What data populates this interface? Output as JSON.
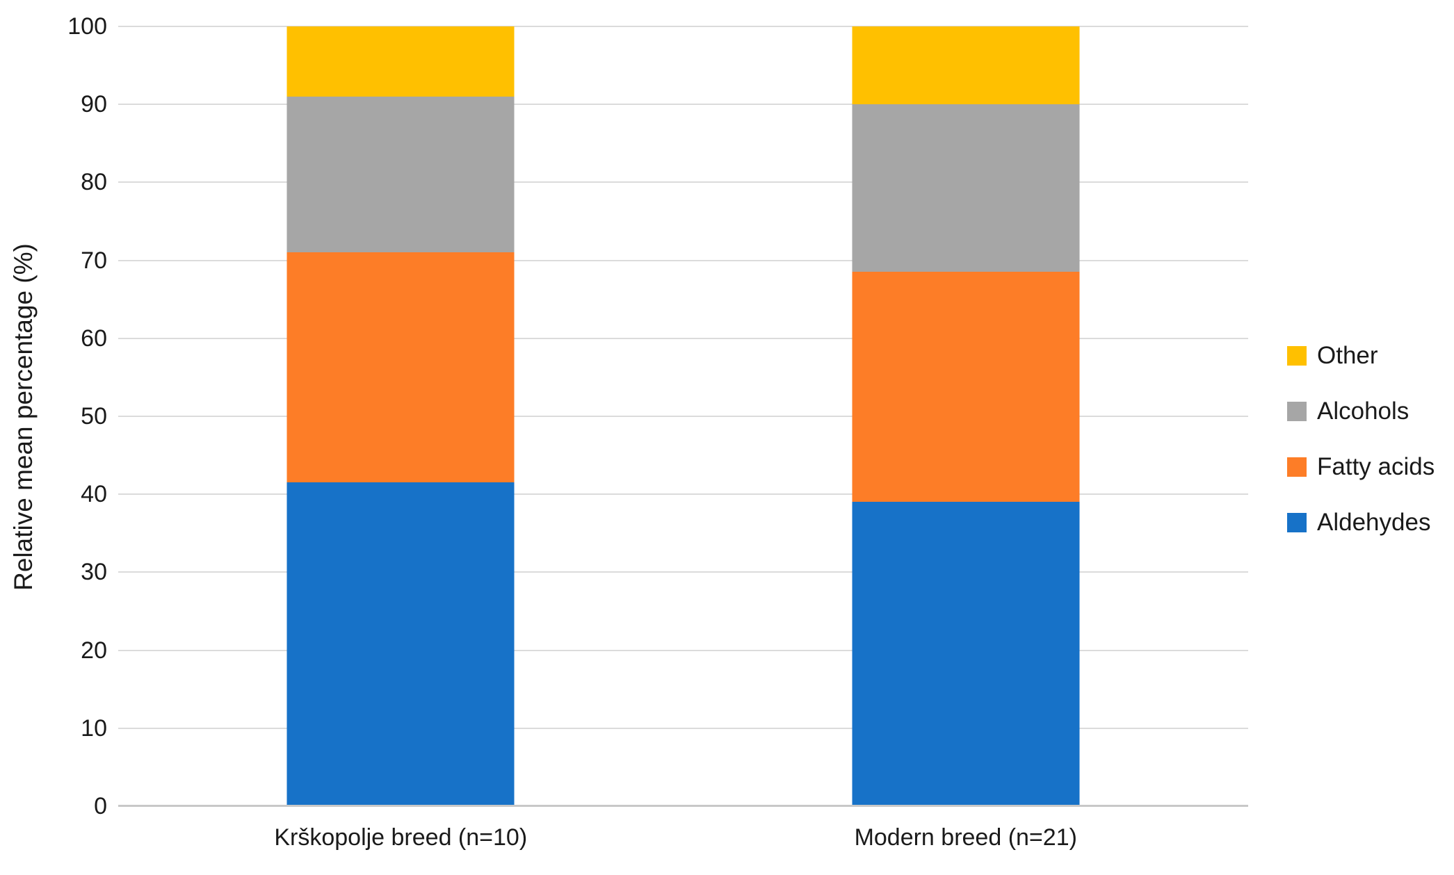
{
  "chart_data": {
    "type": "bar",
    "stacked": true,
    "title": "",
    "xlabel": "",
    "ylabel": "Relative mean percentage (%)",
    "ylim": [
      0,
      100
    ],
    "ytick_step": 10,
    "grid": true,
    "legend_position": "right",
    "categories": [
      "Krškopolje breed (n=10)",
      "Modern breed (n=21)"
    ],
    "series": [
      {
        "name": "Aldehydes",
        "color": "#1772c8",
        "values": [
          41.5,
          39.0
        ]
      },
      {
        "name": "Fatty acids",
        "color": "#fd7d27",
        "values": [
          29.5,
          29.5
        ]
      },
      {
        "name": "Alcohols",
        "color": "#a6a6a6",
        "values": [
          20.0,
          21.5
        ]
      },
      {
        "name": "Other",
        "color": "#ffc000",
        "values": [
          9.0,
          10.0
        ]
      }
    ],
    "legend_order": [
      "Other",
      "Alcohols",
      "Fatty acids",
      "Aldehydes"
    ]
  },
  "colors": {
    "gridline": "#dbdbdb",
    "axis_line": "#c8c8c8",
    "text": "#1a1a1a",
    "background": "#ffffff"
  }
}
